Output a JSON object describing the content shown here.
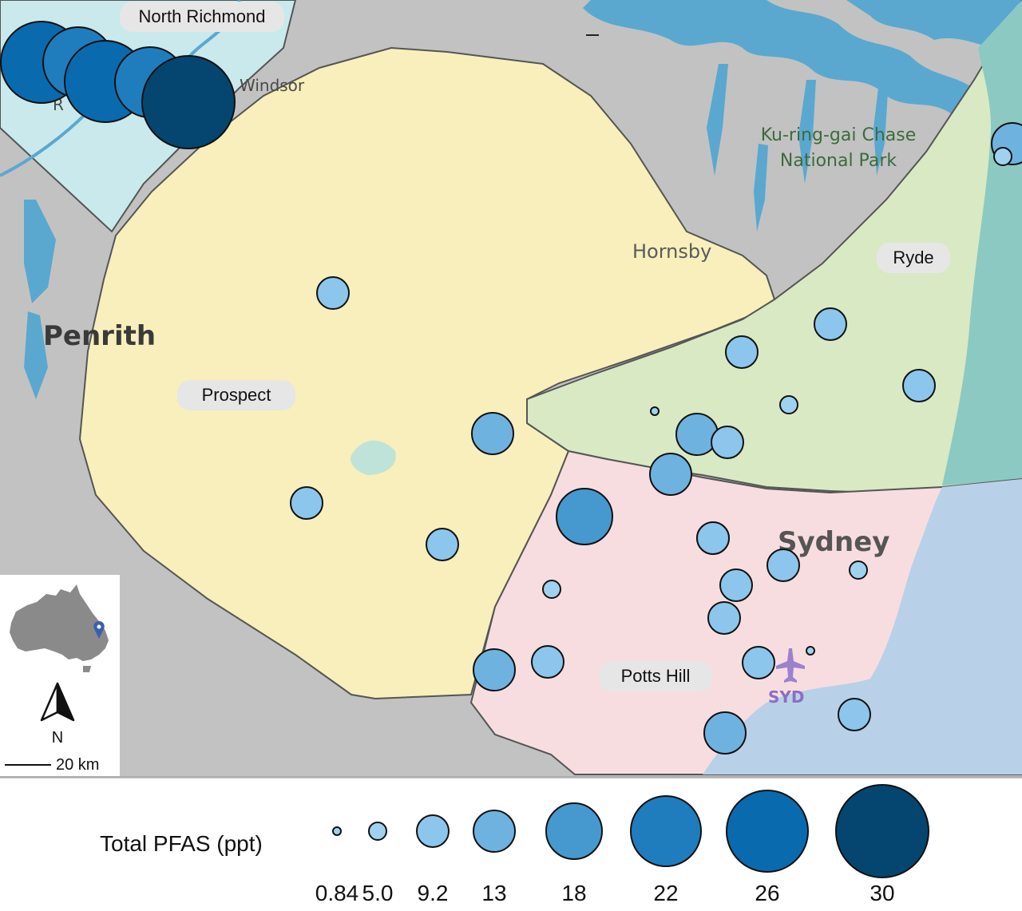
{
  "zones": {
    "north_richmond": "North Richmond",
    "prospect": "Prospect",
    "ryde": "Ryde",
    "potts_hill": "Potts Hill"
  },
  "places": {
    "penrith": "Penrith",
    "windsor": "Windsor",
    "hornsby": "Hornsby",
    "sydney": "Sydney",
    "syd_airport": "SYD",
    "national_park_line1": "Ku-ring-gai Chase",
    "national_park_line2": "National Park",
    "r_partial": "R"
  },
  "inset": {
    "north_label": "N",
    "scale_label": "20 km"
  },
  "legend": {
    "title": "Total PFAS (ppt)",
    "values": [
      "0.84",
      "5.0",
      "9.2",
      "13",
      "18",
      "22",
      "26",
      "30"
    ]
  },
  "colors": {
    "water": "#5aa8cf",
    "land": "#c2c2c2",
    "north_richmond_zone": "#c9e9ec",
    "prospect_zone": "#f8efbc",
    "ryde_zone": "#d8e9c4",
    "potts_hill_zone": "#f8dde0",
    "ocean_east": "#8cc9c2",
    "ocean_south": "#b8d1e8",
    "pfas_0.84": "#9fd2ef",
    "pfas_5.0": "#9fd2ef",
    "pfas_9.2": "#8cc6ec",
    "pfas_13": "#6eb3e0",
    "pfas_18": "#4599cf",
    "pfas_22": "#1f7dbe",
    "pfas_26": "#0a6aae",
    "pfas_30": "#044670"
  },
  "sample_sites": [
    {
      "zone": "north_richmond",
      "pfas": 26
    },
    {
      "zone": "north_richmond",
      "pfas": 22
    },
    {
      "zone": "north_richmond",
      "pfas": 26
    },
    {
      "zone": "north_richmond",
      "pfas": 22
    },
    {
      "zone": "north_richmond",
      "pfas": 30
    },
    {
      "zone": "prospect",
      "pfas": 9.2
    },
    {
      "zone": "prospect",
      "pfas": 13
    },
    {
      "zone": "prospect",
      "pfas": 9.2
    },
    {
      "zone": "prospect",
      "pfas": 9.2
    },
    {
      "zone": "prospect",
      "pfas": 13
    },
    {
      "zone": "ryde",
      "pfas": 9.2
    },
    {
      "zone": "ryde",
      "pfas": 9.2
    },
    {
      "zone": "ryde",
      "pfas": 0.84
    },
    {
      "zone": "ryde",
      "pfas": 5.0
    },
    {
      "zone": "ryde",
      "pfas": 9.2
    },
    {
      "zone": "ryde",
      "pfas": 13
    },
    {
      "zone": "ryde",
      "pfas": 9.2
    },
    {
      "zone": "ryde",
      "pfas": 13
    },
    {
      "zone": "ryde",
      "pfas": 5.0
    },
    {
      "zone": "ryde",
      "pfas": 9.2
    },
    {
      "zone": "potts_hill",
      "pfas": 18
    },
    {
      "zone": "potts_hill",
      "pfas": 9.2
    },
    {
      "zone": "potts_hill",
      "pfas": 9.2
    },
    {
      "zone": "potts_hill",
      "pfas": 5.0
    },
    {
      "zone": "potts_hill",
      "pfas": 5.0
    },
    {
      "zone": "potts_hill",
      "pfas": 9.2
    },
    {
      "zone": "potts_hill",
      "pfas": 0.84
    },
    {
      "zone": "potts_hill",
      "pfas": 9.2
    },
    {
      "zone": "potts_hill",
      "pfas": 9.2
    },
    {
      "zone": "potts_hill",
      "pfas": 13
    },
    {
      "zone": "potts_hill",
      "pfas": 9.2
    },
    {
      "zone": "potts_hill",
      "pfas": 13
    },
    {
      "zone": "potts_hill",
      "pfas": 9.2
    }
  ]
}
